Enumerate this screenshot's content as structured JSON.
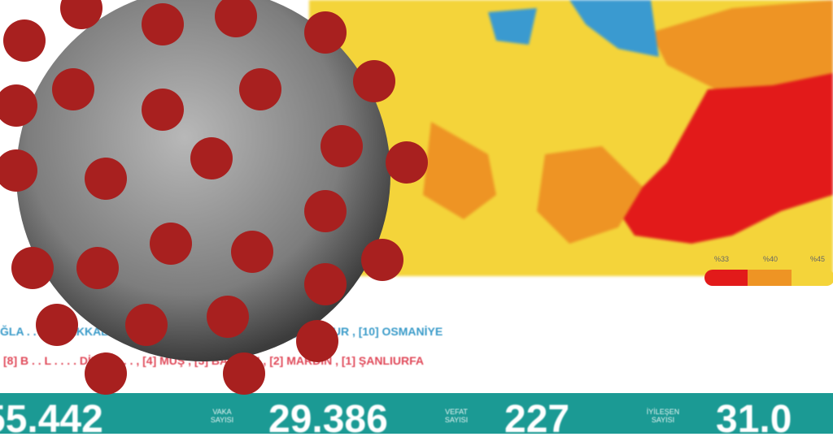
{
  "colors": {
    "yellow": "#f4d43a",
    "orange": "#ee9424",
    "red": "#e21a1a",
    "blue": "#3a9ad0",
    "teal": "#1b9a94",
    "virus_gray": "#8a8a8a",
    "spike_red": "#a8201f"
  },
  "ranking": {
    "top_row": "ĞLA . . . . ANAKKALE , [7] EDİRNE , [8] BALIKESİR , [9] BURDUR , [10] OSMANİYE",
    "bottom_row": "[8] B . . L . . . . DİYAR . . . , [4] MUŞ , [3] BATMAN , [2] MARDİN , [1] ŞANLIURFA"
  },
  "legend": {
    "labels": [
      "%33",
      "%40",
      "%45"
    ]
  },
  "stats": [
    {
      "value": "55.442",
      "label": ""
    },
    {
      "label": "VAKA SAYISI",
      "value": "29.386"
    },
    {
      "label": "VEFAT SAYISI",
      "value": "227"
    },
    {
      "label": "İYİLEŞEN SAYISI",
      "value": "31.0"
    }
  ]
}
